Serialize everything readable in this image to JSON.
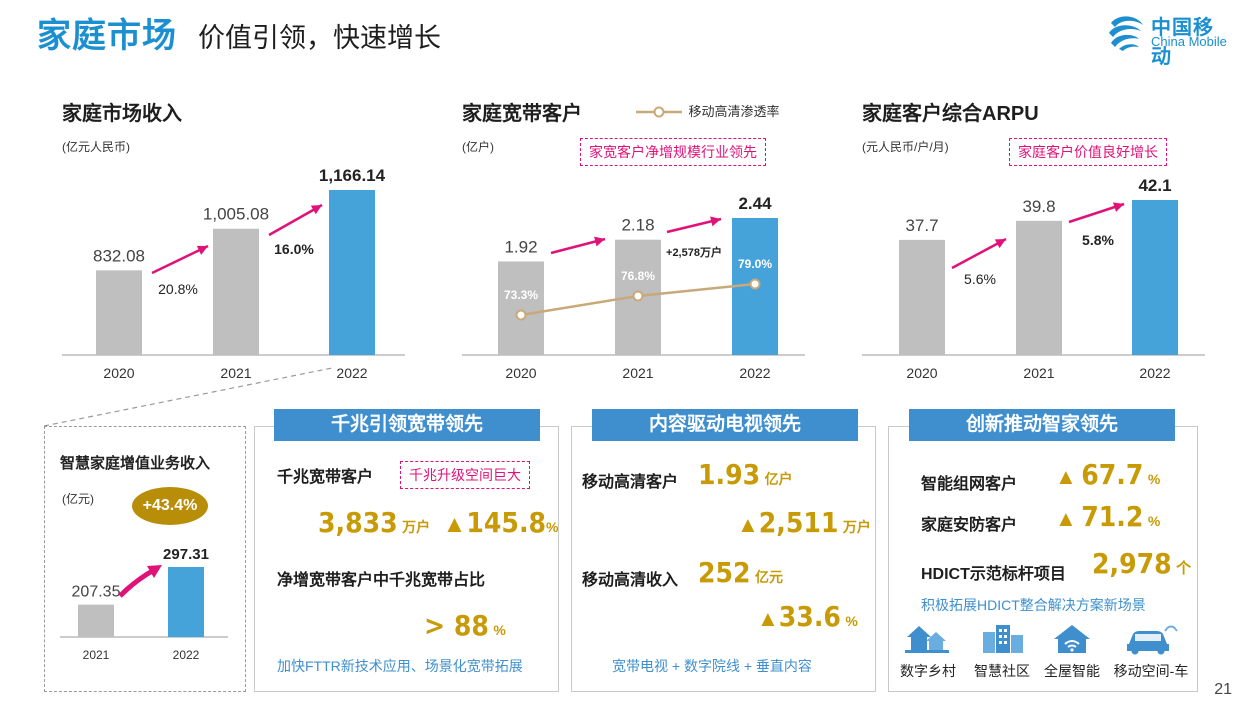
{
  "header": {
    "title": "家庭市场",
    "subtitle": "价值引领，快速增长",
    "logo_cn": "中国移动",
    "logo_en": "China Mobile"
  },
  "colors": {
    "gray_bar": "#bfbfbf",
    "blue_bar": "#45a3d9",
    "arrow": "#e0127a",
    "gold": "#c79a06",
    "line": "#c8a97a"
  },
  "chart_data": [
    {
      "type": "bar",
      "title": "家庭市场收入",
      "unit": "(亿元人民币)",
      "categories": [
        "2020",
        "2021",
        "2022"
      ],
      "values": [
        832.08,
        1005.08,
        1166.14
      ],
      "labels": [
        "832.08",
        "1,005.08",
        "1,166.14"
      ],
      "growth": [
        "20.8%",
        "16.0%"
      ]
    },
    {
      "type": "bar",
      "title": "家庭宽带客户",
      "unit": "(亿户)",
      "legend": "移动高清渗透率",
      "tag": "家宽客户净增规模行业领先",
      "categories": [
        "2020",
        "2021",
        "2022"
      ],
      "values": [
        1.92,
        2.18,
        2.44
      ],
      "labels": [
        "1.92",
        "2.18",
        "2.44"
      ],
      "line_series": {
        "name": "移动高清渗透率",
        "values": [
          73.3,
          76.8,
          79.0
        ],
        "labels": [
          "73.3%",
          "76.8%",
          "79.0%"
        ]
      },
      "annotation": "+2,578万户"
    },
    {
      "type": "bar",
      "title": "家庭客户综合ARPU",
      "unit": "(元人民币/户/月)",
      "tag": "家庭客户价值良好增长",
      "categories": [
        "2020",
        "2021",
        "2022"
      ],
      "values": [
        37.7,
        39.8,
        42.1
      ],
      "labels": [
        "37.7",
        "39.8",
        "42.1"
      ],
      "growth": [
        "5.6%",
        "5.8%"
      ]
    },
    {
      "type": "bar",
      "title": "智慧家庭增值业务收入",
      "unit": "(亿元)",
      "badge": "+43.4%",
      "categories": [
        "2021",
        "2022"
      ],
      "values": [
        207.35,
        297.31
      ],
      "labels": [
        "207.35",
        "297.31"
      ]
    }
  ],
  "panel1": {
    "head": "千兆引领宽带领先",
    "row1_label": "千兆宽带客户",
    "row1_tag": "千兆升级空间巨大",
    "row1_value": "3,833",
    "row1_unit": "万户",
    "row1_growth": "145.8",
    "row1_growth_unit": "%",
    "row2_label": "净增宽带客户中千兆宽带占比",
    "row2_value": "> 88",
    "row2_unit": "%",
    "footer": "加快FTTR新技术应用、场景化宽带拓展"
  },
  "panel2": {
    "head": "内容驱动电视领先",
    "row1_label": "移动高清客户",
    "row1_value": "1.93",
    "row1_unit": "亿户",
    "row1_growth": "2,511",
    "row1_growth_unit": "万户",
    "row2_label": "移动高清收入",
    "row2_value": "252",
    "row2_unit": "亿元",
    "row2_growth": "33.6",
    "row2_growth_unit": "%",
    "footer": "宽带电视 + 数字院线 + 垂直内容"
  },
  "panel3": {
    "head": "创新推动智家领先",
    "row1_label": "智能组网客户",
    "row1_value": "67.7",
    "row1_unit": "%",
    "row2_label": "家庭安防客户",
    "row2_value": "71.2",
    "row2_unit": "%",
    "row3_label": "HDICT示范标杆项目",
    "row3_value": "2,978",
    "row3_unit": "个",
    "footer": "积极拓展HDICT整合解决方案新场景",
    "icons": [
      {
        "name": "village-icon",
        "label": "数字乡村"
      },
      {
        "name": "community-icon",
        "label": "智慧社区"
      },
      {
        "name": "smart-home-icon",
        "label": "全屋智能"
      },
      {
        "name": "car-icon",
        "label": "移动空间-车"
      }
    ]
  },
  "page_number": "21"
}
